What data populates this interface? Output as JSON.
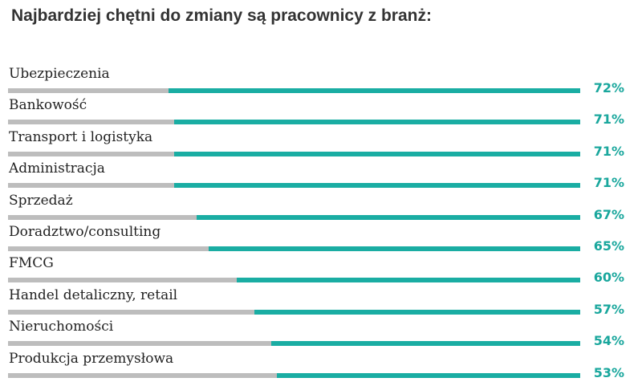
{
  "title": "Najbardziej chętni do zmiany są pracownicy z branż:",
  "colors": {
    "accent": "#1aada3",
    "track": "#bdbdbd",
    "label": "#1aa79d"
  },
  "chart_data": {
    "type": "bar",
    "orientation": "horizontal",
    "title": "Najbardziej chętni do zmiany są pracownicy z branż:",
    "categories": [
      "Ubezpieczenia",
      "Bankowość",
      "Transport i logistyka",
      "Administracja",
      "Sprzedaż",
      "Doradztwo/consulting",
      "FMCG",
      "Handel detaliczny,  retail",
      "Nieruchomości",
      "Produkcja przemysłowa"
    ],
    "values": [
      72,
      71,
      71,
      71,
      67,
      65,
      60,
      57,
      54,
      53
    ],
    "value_labels": [
      "72%",
      "71%",
      "71%",
      "71%",
      "67%",
      "65%",
      "60%",
      "57%",
      "54%",
      "53%"
    ],
    "unit": "%",
    "xlim": [
      0,
      100
    ]
  }
}
